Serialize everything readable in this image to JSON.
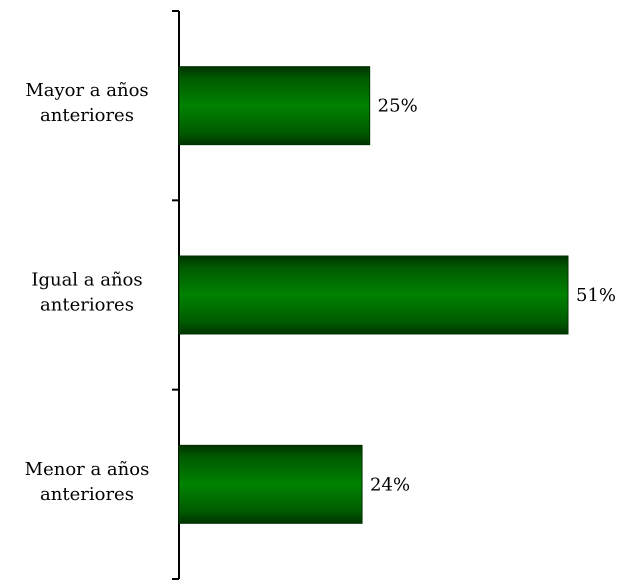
{
  "chart_data": {
    "type": "bar",
    "orientation": "horizontal",
    "categories": [
      [
        "Mayor a años",
        "anteriores"
      ],
      [
        "Igual a años",
        "anteriores"
      ],
      [
        "Menor a años",
        "anteriores"
      ]
    ],
    "values": [
      25,
      51,
      24
    ],
    "value_labels": [
      "25%",
      "51%",
      "24%"
    ],
    "unit": "%",
    "xlim": [
      0,
      51
    ],
    "grid": false,
    "legend": "none",
    "bar_color": "#007a00",
    "bar_edge_color": "#003300"
  }
}
